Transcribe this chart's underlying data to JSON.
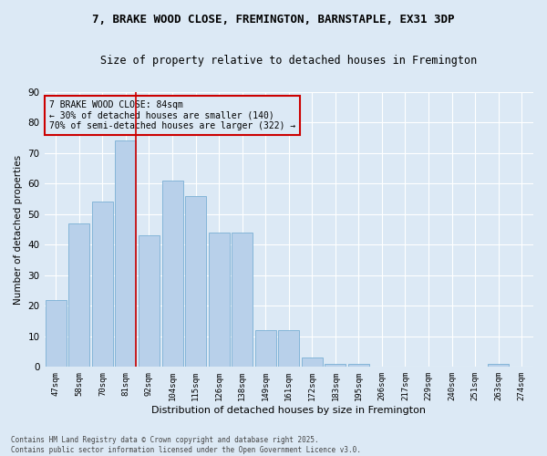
{
  "title1": "7, BRAKE WOOD CLOSE, FREMINGTON, BARNSTAPLE, EX31 3DP",
  "title2": "Size of property relative to detached houses in Fremington",
  "xlabel": "Distribution of detached houses by size in Fremington",
  "ylabel": "Number of detached properties",
  "categories": [
    "47sqm",
    "58sqm",
    "70sqm",
    "81sqm",
    "92sqm",
    "104sqm",
    "115sqm",
    "126sqm",
    "138sqm",
    "149sqm",
    "161sqm",
    "172sqm",
    "183sqm",
    "195sqm",
    "206sqm",
    "217sqm",
    "229sqm",
    "240sqm",
    "251sqm",
    "263sqm",
    "274sqm"
  ],
  "values": [
    22,
    47,
    54,
    74,
    43,
    61,
    56,
    44,
    44,
    12,
    12,
    3,
    1,
    1,
    0,
    0,
    0,
    0,
    0,
    1,
    0
  ],
  "bar_color": "#b8d0ea",
  "bar_edge_color": "#7aafd4",
  "highlight_line_index": 3,
  "annotation_title": "7 BRAKE WOOD CLOSE: 84sqm",
  "annotation_line1": "← 30% of detached houses are smaller (140)",
  "annotation_line2": "70% of semi-detached houses are larger (322) →",
  "annotation_box_color": "#cc0000",
  "line_color": "#cc0000",
  "background_color": "#dce9f5",
  "grid_color": "#ffffff",
  "footer1": "Contains HM Land Registry data © Crown copyright and database right 2025.",
  "footer2": "Contains public sector information licensed under the Open Government Licence v3.0.",
  "ylim": [
    0,
    90
  ],
  "yticks": [
    0,
    10,
    20,
    30,
    40,
    50,
    60,
    70,
    80,
    90
  ]
}
